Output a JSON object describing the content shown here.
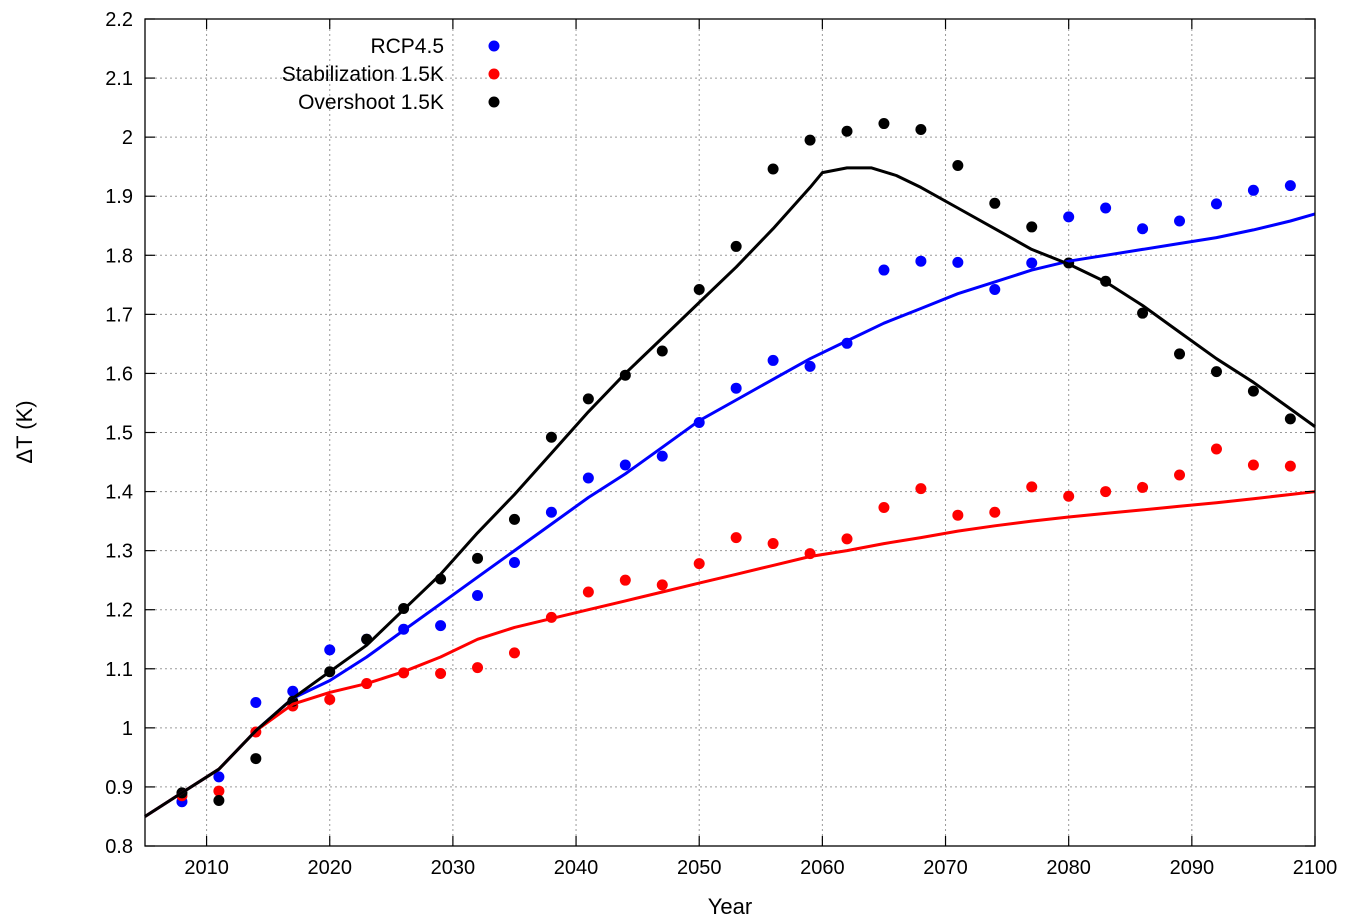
{
  "chart_data": {
    "type": "scatter",
    "xlabel": "Year",
    "ylabel": "ΔT (K)",
    "xlim": [
      2005,
      2100
    ],
    "ylim": [
      0.8,
      2.2
    ],
    "x_ticks": [
      "2010",
      "2020",
      "2030",
      "2040",
      "2050",
      "2060",
      "2070",
      "2080",
      "2090",
      "2100"
    ],
    "y_ticks": [
      "0.8",
      "0.9",
      "1",
      "1.1",
      "1.2",
      "1.3",
      "1.4",
      "1.5",
      "1.6",
      "1.7",
      "1.8",
      "1.9",
      "2",
      "2.1",
      "2.2"
    ],
    "grid": true,
    "legend_position": "top-left",
    "series": [
      {
        "name": "RCP4.5",
        "color": "#0000ff",
        "mean_points": {
          "x": [
            2008,
            2011,
            2014,
            2017,
            2020,
            2023,
            2026,
            2029,
            2032,
            2035,
            2038,
            2041,
            2044,
            2047,
            2050,
            2053,
            2056,
            2059,
            2062,
            2065,
            2068,
            2071,
            2074,
            2077,
            2080,
            2083,
            2086,
            2089,
            2092,
            2095,
            2098
          ],
          "y": [
            0.875,
            0.917,
            1.043,
            1.062,
            1.132,
            1.15,
            1.167,
            1.173,
            1.224,
            1.28,
            1.365,
            1.423,
            1.445,
            1.46,
            1.517,
            1.575,
            1.622,
            1.612,
            1.651,
            1.775,
            1.79,
            1.788,
            1.742,
            1.787,
            1.865,
            1.88,
            1.845,
            1.858,
            1.887,
            1.91,
            1.918
          ]
        },
        "curve": {
          "x": [
            2005,
            2008,
            2011,
            2014,
            2017,
            2020,
            2023,
            2026,
            2029,
            2032,
            2035,
            2038,
            2041,
            2044,
            2047,
            2050,
            2053,
            2056,
            2059,
            2062,
            2065,
            2068,
            2071,
            2074,
            2077,
            2080,
            2083,
            2086,
            2089,
            2092,
            2095,
            2098,
            2100
          ],
          "y": [
            0.85,
            0.89,
            0.93,
            0.995,
            1.05,
            1.08,
            1.12,
            1.165,
            1.21,
            1.255,
            1.3,
            1.345,
            1.39,
            1.43,
            1.475,
            1.52,
            1.555,
            1.59,
            1.625,
            1.655,
            1.685,
            1.71,
            1.735,
            1.755,
            1.775,
            1.79,
            1.8,
            1.81,
            1.82,
            1.83,
            1.843,
            1.858,
            1.87
          ]
        }
      },
      {
        "name": "Stabilization 1.5K",
        "color": "#ff0000",
        "mean_points": {
          "x": [
            2008,
            2011,
            2014,
            2017,
            2020,
            2023,
            2026,
            2029,
            2032,
            2035,
            2038,
            2041,
            2044,
            2047,
            2050,
            2053,
            2056,
            2059,
            2062,
            2065,
            2068,
            2071,
            2074,
            2077,
            2080,
            2083,
            2086,
            2089,
            2092,
            2095,
            2098
          ],
          "y": [
            0.885,
            0.893,
            0.993,
            1.037,
            1.048,
            1.075,
            1.093,
            1.092,
            1.102,
            1.127,
            1.187,
            1.23,
            1.25,
            1.242,
            1.278,
            1.322,
            1.312,
            1.295,
            1.32,
            1.373,
            1.405,
            1.36,
            1.365,
            1.408,
            1.392,
            1.4,
            1.407,
            1.428,
            1.472,
            1.445,
            1.443
          ]
        },
        "curve": {
          "x": [
            2005,
            2008,
            2011,
            2014,
            2017,
            2020,
            2023,
            2026,
            2029,
            2032,
            2035,
            2038,
            2041,
            2044,
            2047,
            2050,
            2053,
            2056,
            2059,
            2062,
            2065,
            2068,
            2071,
            2074,
            2077,
            2080,
            2083,
            2086,
            2089,
            2092,
            2095,
            2098,
            2100
          ],
          "y": [
            0.85,
            0.89,
            0.93,
            0.995,
            1.04,
            1.06,
            1.075,
            1.095,
            1.12,
            1.15,
            1.17,
            1.185,
            1.2,
            1.215,
            1.23,
            1.245,
            1.26,
            1.275,
            1.29,
            1.3,
            1.312,
            1.322,
            1.333,
            1.342,
            1.35,
            1.357,
            1.363,
            1.369,
            1.375,
            1.381,
            1.388,
            1.395,
            1.4
          ]
        }
      },
      {
        "name": "Overshoot 1.5K",
        "color": "#000000",
        "mean_points": {
          "x": [
            2008,
            2011,
            2014,
            2017,
            2020,
            2023,
            2026,
            2029,
            2032,
            2035,
            2038,
            2041,
            2044,
            2047,
            2050,
            2053,
            2056,
            2059,
            2062,
            2065,
            2068,
            2071,
            2074,
            2077,
            2080,
            2083,
            2086,
            2089,
            2092,
            2095,
            2098
          ],
          "y": [
            0.89,
            0.877,
            0.948,
            1.045,
            1.095,
            1.15,
            1.202,
            1.252,
            1.287,
            1.353,
            1.492,
            1.557,
            1.597,
            1.638,
            1.742,
            1.815,
            1.946,
            1.995,
            2.01,
            2.023,
            2.013,
            1.952,
            1.888,
            1.848,
            1.787,
            1.756,
            1.702,
            1.633,
            1.603,
            1.57,
            1.523
          ]
        },
        "curve": {
          "x": [
            2005,
            2008,
            2011,
            2014,
            2017,
            2020,
            2023,
            2026,
            2029,
            2032,
            2035,
            2038,
            2041,
            2044,
            2047,
            2050,
            2053,
            2056,
            2059,
            2060,
            2062,
            2064,
            2066,
            2068,
            2071,
            2074,
            2077,
            2080,
            2083,
            2086,
            2089,
            2092,
            2095,
            2098,
            2100
          ],
          "y": [
            0.85,
            0.89,
            0.93,
            0.995,
            1.05,
            1.095,
            1.14,
            1.2,
            1.26,
            1.33,
            1.395,
            1.465,
            1.535,
            1.6,
            1.66,
            1.72,
            1.78,
            1.845,
            1.915,
            1.94,
            1.948,
            1.948,
            1.935,
            1.915,
            1.88,
            1.845,
            1.81,
            1.785,
            1.755,
            1.715,
            1.67,
            1.625,
            1.585,
            1.54,
            1.51
          ]
        }
      }
    ]
  }
}
